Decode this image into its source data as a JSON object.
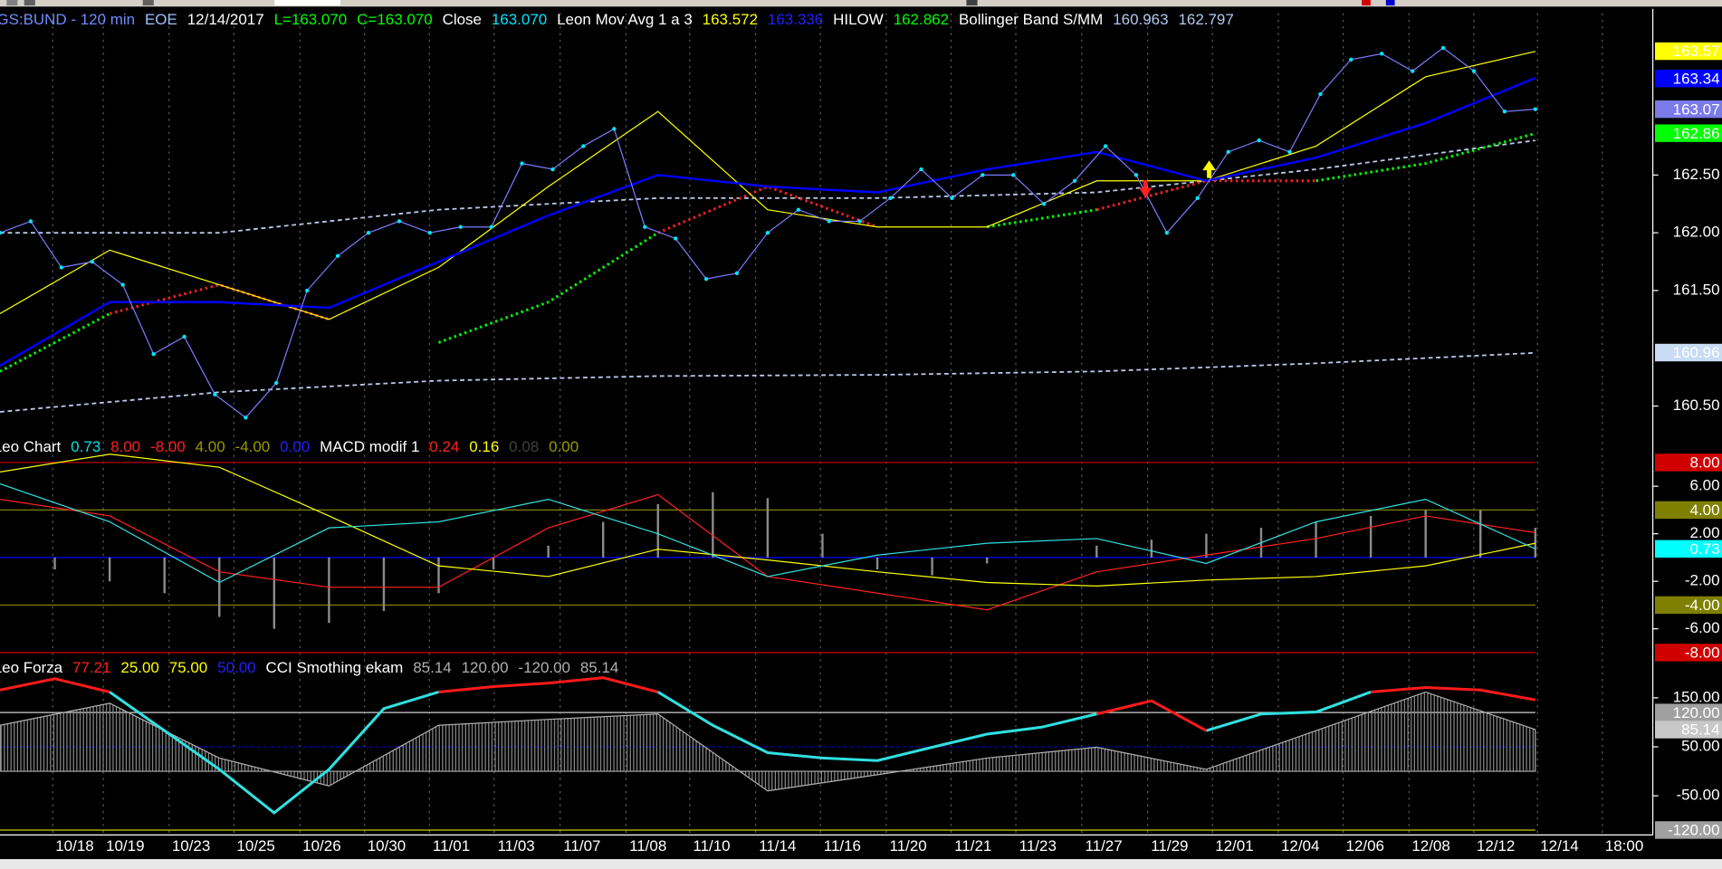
{
  "panes": [
    {
      "legend": [
        {
          "text": "GS:BUND - 120 min",
          "color": "#6f8cff"
        },
        {
          "text": "EOE",
          "color": "#9fc0ff"
        },
        {
          "text": "12/14/2017",
          "color": "#ffffff"
        },
        {
          "text": "L=163.070",
          "color": "#00ff00"
        },
        {
          "text": "C=163.070",
          "color": "#00ff00"
        },
        {
          "text": "Close",
          "color": "#ffffff"
        },
        {
          "text": "163.070",
          "color": "#00e5ff"
        },
        {
          "text": "Leon Mov Avg 1 a 3",
          "color": "#ffffff"
        },
        {
          "text": "163.572",
          "color": "#ffff00"
        },
        {
          "text": "163.336",
          "color": "#2020ff"
        },
        {
          "text": "HILOW",
          "color": "#ffffff"
        },
        {
          "text": "162.862",
          "color": "#00ff00"
        },
        {
          "text": "Bollinger Band S/MM",
          "color": "#ffffff"
        },
        {
          "text": "160.963",
          "color": "#b0c8f0"
        },
        {
          "text": "162.797",
          "color": "#b0c8f0"
        }
      ],
      "ylim": [
        160.23,
        163.92
      ],
      "yticks": [
        {
          "value": 160.5,
          "label": "160.50"
        },
        {
          "value": 161.5,
          "label": "161.50"
        },
        {
          "value": 162,
          "label": "162.00"
        },
        {
          "value": 162.5,
          "label": "162.50"
        }
      ],
      "levels": [],
      "tags": [
        {
          "value": 163.572,
          "label": "163.57",
          "bg": "#ffff00",
          "fg": "#000000"
        },
        {
          "value": 163.336,
          "label": "163.34",
          "bg": "#0000ff",
          "fg": "#3a3aff"
        },
        {
          "value": 163.07,
          "label": "163.07",
          "bg": "#7a7ae8",
          "fg": "#ffffff"
        },
        {
          "value": 162.862,
          "label": "162.86",
          "bg": "#00ff00",
          "fg": "#000000"
        },
        {
          "value": 160.963,
          "label": "160.96",
          "bg": "#c8dcf4",
          "fg": "#000000"
        }
      ],
      "series": [
        {
          "style": "dash",
          "color": "#b8c8e8",
          "values": [
            162.0,
            162.0,
            162.2,
            162.3,
            162.3,
            162.35,
            162.55,
            162.8
          ]
        },
        {
          "style": "dash",
          "color": "#b8c8e8",
          "values": [
            160.45,
            160.62,
            160.72,
            160.76,
            160.77,
            160.8,
            160.87,
            160.96
          ]
        },
        {
          "style": "dots",
          "color": "#00ff00",
          "values": [
            160.8,
            161.3,
            null,
            null,
            161.05,
            161.4,
            162.0,
            null,
            null,
            162.05,
            162.2,
            null,
            162.45,
            162.6,
            162.86
          ]
        },
        {
          "style": "dots",
          "color": "#ff2020",
          "values": [
            null,
            161.3,
            161.55,
            161.25,
            null,
            null,
            162.0,
            162.4,
            162.05,
            null,
            162.2,
            162.45,
            162.45,
            null,
            null
          ]
        },
        {
          "style": "line",
          "color": "#ffff00",
          "width": 1,
          "values": [
            161.3,
            161.85,
            161.55,
            161.25,
            161.7,
            162.4,
            163.05,
            162.2,
            162.05,
            162.05,
            162.45,
            162.45,
            162.75,
            163.35,
            163.57
          ]
        },
        {
          "style": "line",
          "color": "#0000ff",
          "width": 2,
          "values": [
            160.85,
            161.4,
            161.4,
            161.35,
            161.75,
            162.15,
            162.5,
            162.4,
            162.35,
            162.55,
            162.7,
            162.45,
            162.65,
            162.95,
            163.34
          ]
        },
        {
          "style": "points",
          "color": "#7b7bff",
          "marker": "#00e5ff",
          "width": 1,
          "values": [
            162.0,
            162.1,
            161.7,
            161.75,
            161.55,
            160.95,
            161.1,
            160.6,
            160.4,
            160.7,
            161.5,
            161.8,
            162.0,
            162.1,
            162.0,
            162.05,
            162.05,
            162.6,
            162.55,
            162.75,
            162.9,
            162.05,
            161.95,
            161.6,
            161.65,
            162.0,
            162.2,
            162.1,
            162.1,
            162.3,
            162.55,
            162.3,
            162.5,
            162.5,
            162.25,
            162.45,
            162.75,
            162.5,
            162.0,
            162.3,
            162.7,
            162.8,
            162.7,
            163.2,
            163.5,
            163.55,
            163.4,
            163.6,
            163.4,
            163.05,
            163.07
          ]
        }
      ]
    },
    {
      "legend": [
        {
          "text": "Leo Chart",
          "color": "#ffffff"
        },
        {
          "text": "0.73",
          "color": "#00e5e5"
        },
        {
          "text": "8.00",
          "color": "#ff2020"
        },
        {
          "text": "-8.00",
          "color": "#ff2020"
        },
        {
          "text": "4.00",
          "color": "#9a9a00"
        },
        {
          "text": "-4.00",
          "color": "#9a9a00"
        },
        {
          "text": "0.00",
          "color": "#2020ff"
        },
        {
          "text": "MACD modif 1",
          "color": "#ffffff"
        },
        {
          "text": "0.24",
          "color": "#ff2020"
        },
        {
          "text": "0.16",
          "color": "#ffff00"
        },
        {
          "text": "0.08",
          "color": "#404040"
        },
        {
          "text": "0.00",
          "color": "#9a9a00"
        }
      ],
      "ylim": [
        -8.37,
        9.94
      ],
      "yticks": [
        {
          "value": 6,
          "label": "6.00"
        },
        {
          "value": 2,
          "label": "2.00"
        },
        {
          "value": -2,
          "label": "-2.00"
        },
        {
          "value": -6,
          "label": "-6.00"
        }
      ],
      "levels": [
        {
          "value": 0,
          "color": "#0000ff"
        }
      ],
      "tags": [
        {
          "value": 8,
          "label": "8.00",
          "bg": "#d00000",
          "fg": "#ffffff",
          "line": "#d00000"
        },
        {
          "value": 4,
          "label": "4.00",
          "bg": "#808000",
          "fg": "#000000",
          "line": "#808000"
        },
        {
          "value": 0.73,
          "label": "0.73",
          "bg": "#00ffff",
          "fg": "#000000"
        },
        {
          "value": -4,
          "label": "-4.00",
          "bg": "#808000",
          "fg": "#000000",
          "line": "#808000"
        },
        {
          "value": -8,
          "label": "-8.00",
          "bg": "#d00000",
          "fg": "#ffffff",
          "line": "#d00000"
        }
      ],
      "series": [
        {
          "style": "bars",
          "color": "#8a8a8a",
          "values": [
            0,
            -1,
            -2,
            -3,
            -5,
            -6,
            -5.5,
            -4.5,
            -3,
            -1,
            1,
            3,
            4.5,
            5.5,
            5,
            2,
            -1,
            -1.5,
            -0.5,
            0,
            1,
            1.5,
            2,
            2.5,
            3,
            3.5,
            4,
            4,
            2.5
          ]
        },
        {
          "style": "line",
          "color": "#ff2020",
          "width": 1,
          "values": [
            4.9,
            3.5,
            -1.2,
            -2.5,
            -2.5,
            2.5,
            5.3,
            -1.6,
            -3.0,
            -4.4,
            -1.2,
            0.2,
            1.6,
            3.5,
            2.1
          ]
        },
        {
          "style": "line",
          "color": "#ffff00",
          "width": 1,
          "values": [
            7.2,
            8.7,
            7.6,
            3.5,
            -0.7,
            -1.6,
            0.7,
            -0.2,
            -1.2,
            -2.1,
            -2.4,
            -1.9,
            -1.6,
            -0.7,
            1.2
          ]
        },
        {
          "style": "line",
          "color": "#30e0e0",
          "width": 1,
          "values": [
            6.2,
            3.0,
            -2.1,
            2.5,
            3.0,
            4.9,
            2.0,
            -1.6,
            0.2,
            1.2,
            1.6,
            -0.5,
            3.0,
            4.9,
            0.73
          ]
        }
      ]
    },
    {
      "legend": [
        {
          "text": "Leo Forza",
          "color": "#ffffff"
        },
        {
          "text": "77.21",
          "color": "#ff2020"
        },
        {
          "text": "25.00",
          "color": "#ffff00"
        },
        {
          "text": "75.00",
          "color": "#ffff00"
        },
        {
          "text": "50.00",
          "color": "#2020ff"
        },
        {
          "text": "CCI Smothing ekam",
          "color": "#ffffff"
        },
        {
          "text": "85.14",
          "color": "#b0b0b0"
        },
        {
          "text": "120.00",
          "color": "#b0b0b0"
        },
        {
          "text": "-120.00",
          "color": "#b0b0b0"
        },
        {
          "text": "85.14",
          "color": "#b0b0b0"
        }
      ],
      "ylim": [
        -130,
        229
      ],
      "yticks": [
        {
          "value": 150,
          "label": "150.00"
        },
        {
          "value": 50,
          "label": "50.00"
        },
        {
          "value": -50,
          "label": "-50.00"
        }
      ],
      "levels": [
        {
          "value": 50,
          "color": "#0000cc",
          "dash": "3,3"
        }
      ],
      "tags": [
        {
          "value": 120,
          "label": "120.00",
          "bg": "#a0a0a0",
          "fg": "#000000",
          "line": "#d0d0d0"
        },
        {
          "value": 85.14,
          "label": "85.14",
          "bg": "#c8c8c8",
          "fg": "#000000"
        },
        {
          "value": -120,
          "label": "-120.00",
          "bg": "#a0a0a0",
          "fg": "#000000",
          "line": "#c8c800"
        }
      ],
      "series": [
        {
          "style": "area",
          "color": "#b0b0b0",
          "values": [
            94,
            139,
            27,
            -30,
            94,
            106,
            117,
            -40,
            -7,
            27,
            49,
            4,
            83,
            162,
            85.14
          ]
        },
        {
          "style": "line",
          "color": "#30e0e0",
          "width": 2.5,
          "values": [
            null,
            null,
            162,
            83,
            4,
            -85,
            4,
            128,
            162,
            null,
            null,
            null,
            162,
            94,
            38,
            27,
            22,
            49,
            76,
            90,
            117,
            null,
            83,
            117,
            121,
            162,
            null,
            null,
            null
          ]
        },
        {
          "style": "line",
          "color": "#ff1a1a",
          "width": 2.5,
          "values": [
            166,
            189,
            162,
            null,
            null,
            null,
            null,
            null,
            162,
            173,
            180,
            191,
            162,
            null,
            null,
            null,
            null,
            null,
            null,
            null,
            117,
            144,
            83,
            null,
            null,
            162,
            171,
            166,
            146
          ]
        }
      ]
    }
  ],
  "x_labels": [
    "10/18",
    "10/19",
    "10/23",
    "10/25",
    "10/26",
    "10/30",
    "11/01",
    "11/03",
    "11/07",
    "11/08",
    "11/10",
    "11/14",
    "11/16",
    "11/20",
    "11/21",
    "11/23",
    "11/27",
    "11/29",
    "12/01",
    "12/04",
    "12/06",
    "12/08",
    "12/12",
    "12/14",
    "18:00"
  ]
}
